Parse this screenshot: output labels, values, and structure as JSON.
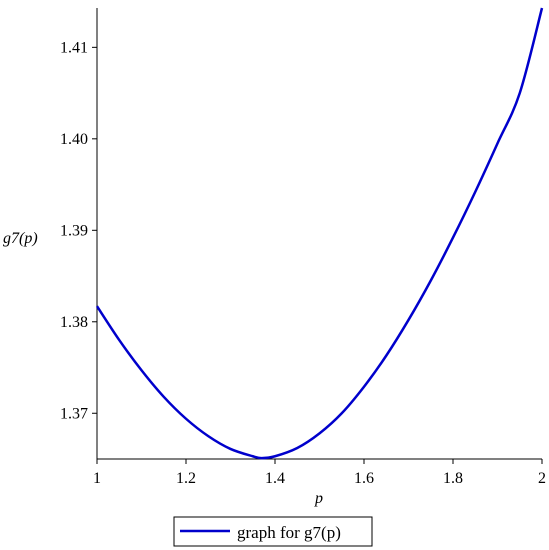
{
  "chart_data": {
    "type": "line",
    "xlabel": "p",
    "ylabel": "g7(p)",
    "xlim": [
      1,
      2
    ],
    "ylim": [
      1.365,
      1.4143
    ],
    "x_ticks": [
      1,
      1.2,
      1.4,
      1.6,
      1.8,
      2
    ],
    "x_tick_labels": [
      "1",
      "1.2",
      "1.4",
      "1.6",
      "1.8",
      "2"
    ],
    "y_ticks": [
      1.37,
      1.38,
      1.39,
      1.4,
      1.41
    ],
    "y_tick_labels": [
      "1.37",
      "1.38",
      "1.39",
      "1.40",
      "1.41"
    ],
    "grid": false,
    "legend_position": "bottom-center",
    "series": [
      {
        "name": "graph for g7(p)",
        "color": "#0000cc",
        "x": [
          1.0,
          1.05,
          1.1,
          1.15,
          1.2,
          1.25,
          1.3,
          1.35,
          1.37,
          1.4,
          1.45,
          1.5,
          1.55,
          1.6,
          1.65,
          1.7,
          1.75,
          1.8,
          1.85,
          1.9,
          1.95,
          2.0
        ],
        "y": [
          1.3817,
          1.378,
          1.3747,
          1.3718,
          1.3694,
          1.3675,
          1.3661,
          1.3653,
          1.3651,
          1.3653,
          1.3662,
          1.3678,
          1.37,
          1.3729,
          1.3763,
          1.3802,
          1.3845,
          1.3892,
          1.3942,
          1.3995,
          1.405,
          1.4143
        ]
      }
    ]
  }
}
